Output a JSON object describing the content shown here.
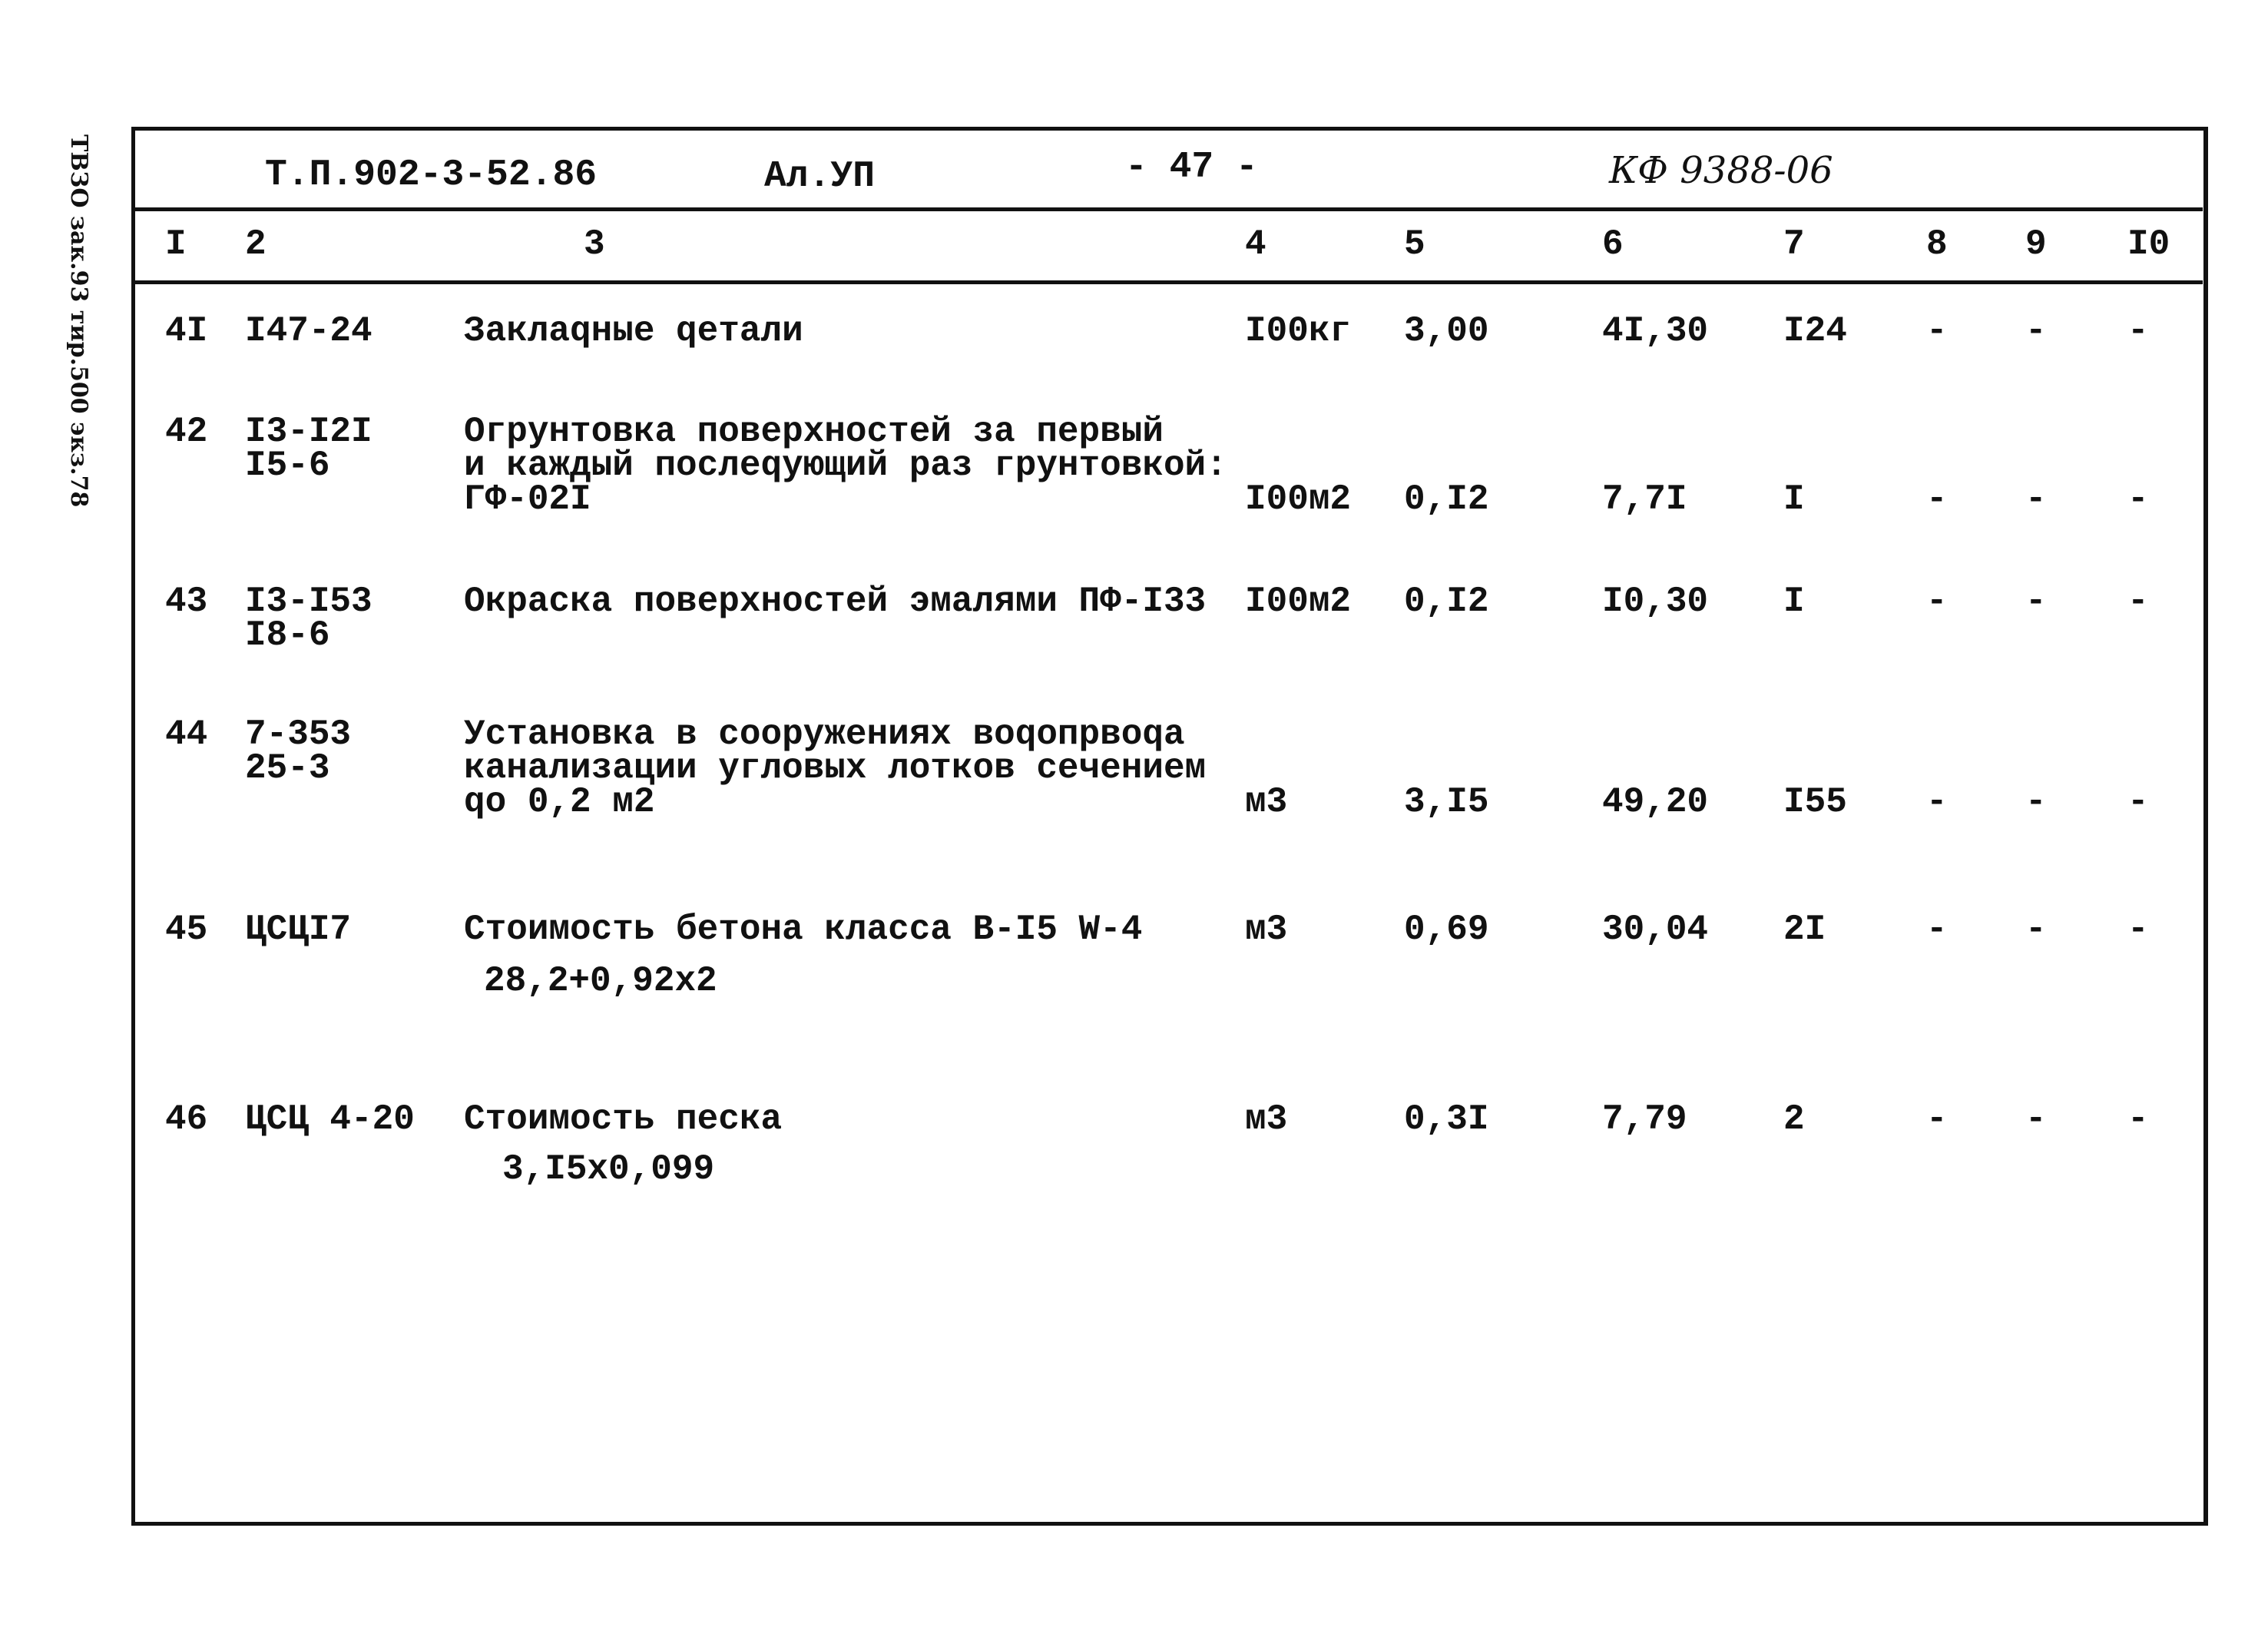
{
  "margin_note": "ТВЗО зак.93 тир.500 экз.78",
  "header": {
    "project_code": "Т.П.902-3-52.86",
    "album": "Ал.УП",
    "page": "- 47 -",
    "form_code": "КФ 9388-06"
  },
  "columns": [
    "I",
    "2",
    "3",
    "4",
    "5",
    "6",
    "7",
    "8",
    "9",
    "I0"
  ],
  "rows": [
    {
      "n": "4I",
      "code": [
        "I47-24"
      ],
      "desc": [
        "Заклаqные qетали"
      ],
      "unit": "I00кг",
      "qty": "3,00",
      "price": "4I,30",
      "total": "I24",
      "c8": "-",
      "c9": "-",
      "c10": "-"
    },
    {
      "n": "42",
      "code": [
        "I3-I2I",
        "I5-6"
      ],
      "desc": [
        "Огрунтовка поверхностей за первый",
        "и каждый послеqующий раз грунтовкой:",
        "ГФ-02I"
      ],
      "unit": "I00м2",
      "qty": "0,I2",
      "price": "7,7I",
      "total": "I",
      "c8": "-",
      "c9": "-",
      "c10": "-"
    },
    {
      "n": "43",
      "code": [
        "I3-I53",
        "I8-6"
      ],
      "desc": [
        "Окраска поверхностей эмалями ПФ-I33"
      ],
      "unit": "I00м2",
      "qty": "0,I2",
      "price": "I0,30",
      "total": "I",
      "c8": "-",
      "c9": "-",
      "c10": "-"
    },
    {
      "n": "44",
      "code": [
        "7-353",
        "25-3"
      ],
      "desc": [
        "Установка в сооружениях воqопрвоqа",
        "канализации угловых лотков сечением",
        "qо 0,2 м2"
      ],
      "unit": "м3",
      "qty": "3,I5",
      "price": "49,20",
      "total": "I55",
      "c8": "-",
      "c9": "-",
      "c10": "-"
    },
    {
      "n": "45",
      "code": [
        "ЦСЦI7"
      ],
      "desc": [
        "Стоимость бетона класса В-I5 W-4"
      ],
      "calc": "28,2+0,92х2",
      "unit": "м3",
      "qty": "0,69",
      "price": "30,04",
      "total": "2I",
      "c8": "-",
      "c9": "-",
      "c10": "-"
    },
    {
      "n": "46",
      "code": [
        "ЦСЦ 4-20"
      ],
      "desc": [
        "Стоимость песка"
      ],
      "calc": "3,I5х0,099",
      "unit": "м3",
      "qty": "0,3I",
      "price": "7,79",
      "total": "2",
      "c8": "-",
      "c9": "-",
      "c10": "-"
    }
  ]
}
